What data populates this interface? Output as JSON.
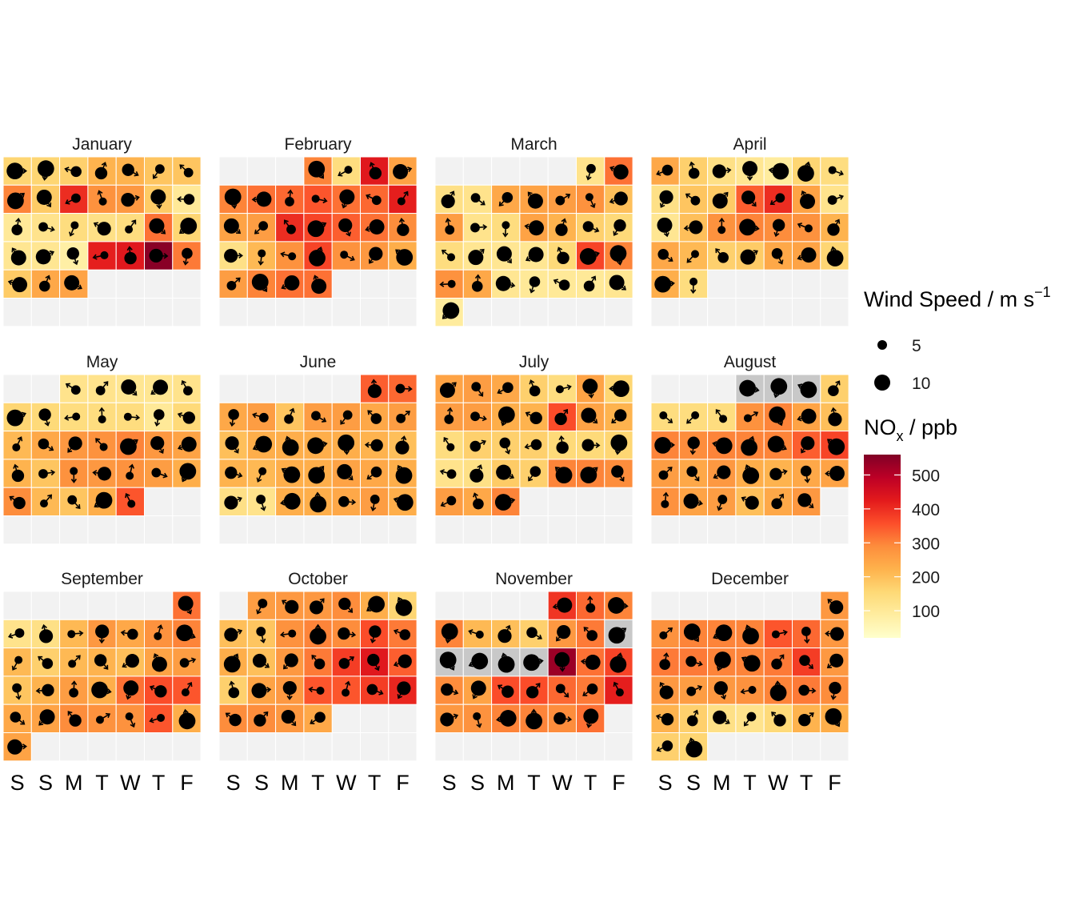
{
  "chart_data": {
    "type": "heatmap",
    "subtype": "calendar",
    "months": [
      {
        "name": "January",
        "start": 0,
        "nox": [
          160,
          160,
          170,
          220,
          220,
          190,
          190,
          300,
          180,
          400,
          280,
          270,
          180,
          100,
          100,
          120,
          140,
          130,
          140,
          320,
          160,
          110,
          110,
          80,
          420,
          430,
          550,
          310,
          180,
          240,
          250
        ]
      },
      {
        "name": "February",
        "start": 3,
        "nox": [
          300,
          140,
          430,
          250,
          300,
          320,
          330,
          350,
          320,
          330,
          420,
          250,
          260,
          400,
          370,
          340,
          320,
          290,
          130,
          210,
          280,
          370,
          280,
          270,
          230,
          260,
          300,
          320,
          320
        ]
      },
      {
        "name": "March",
        "start": 5,
        "nox": [
          120,
          320,
          130,
          120,
          240,
          250,
          260,
          280,
          200,
          260,
          120,
          140,
          250,
          220,
          170,
          150,
          140,
          110,
          110,
          110,
          150,
          370,
          300,
          280,
          240,
          110,
          100,
          100,
          100,
          110,
          90
        ]
      },
      {
        "name": "April",
        "start": 0,
        "nox": [
          240,
          170,
          130,
          110,
          90,
          160,
          140,
          130,
          190,
          180,
          340,
          400,
          250,
          120,
          110,
          200,
          280,
          300,
          290,
          280,
          220,
          240,
          210,
          170,
          180,
          240,
          250,
          160,
          230,
          140
        ]
      },
      {
        "name": "May",
        "start": 2,
        "nox": [
          120,
          120,
          110,
          110,
          120,
          160,
          150,
          140,
          140,
          140,
          100,
          150,
          210,
          240,
          270,
          280,
          300,
          270,
          250,
          220,
          190,
          280,
          270,
          280,
          260,
          230,
          290,
          210,
          190,
          230,
          350
        ]
      },
      {
        "name": "June",
        "start": 5,
        "nox": [
          340,
          330,
          240,
          260,
          190,
          260,
          260,
          240,
          260,
          200,
          230,
          230,
          230,
          230,
          220,
          200,
          220,
          210,
          230,
          230,
          250,
          240,
          230,
          130,
          120,
          230,
          230,
          240,
          260,
          230
        ]
      },
      {
        "name": "July",
        "start": 0,
        "nox": [
          250,
          260,
          240,
          170,
          140,
          250,
          160,
          260,
          260,
          230,
          220,
          360,
          250,
          220,
          140,
          170,
          170,
          170,
          150,
          150,
          160,
          120,
          130,
          180,
          170,
          300,
          300,
          290,
          260,
          240,
          300
        ]
      },
      {
        "name": "August",
        "start": 3,
        "nox": [
          -1,
          -1,
          -1,
          170,
          140,
          140,
          140,
          280,
          300,
          250,
          200,
          300,
          290,
          300,
          300,
          300,
          340,
          370,
          260,
          240,
          270,
          230,
          220,
          240,
          250,
          280,
          250,
          260,
          200,
          240,
          270
        ]
      },
      {
        "name": "September",
        "start": 6,
        "nox": [
          320,
          120,
          130,
          210,
          270,
          240,
          280,
          300,
          210,
          170,
          210,
          220,
          200,
          250,
          260,
          190,
          220,
          260,
          230,
          320,
          360,
          350,
          240,
          250,
          290,
          280,
          280,
          350,
          230,
          250
        ]
      },
      {
        "name": "October",
        "start": 1,
        "nox": [
          260,
          270,
          270,
          290,
          230,
          160,
          200,
          190,
          280,
          300,
          290,
          360,
          310,
          230,
          200,
          270,
          310,
          380,
          430,
          340,
          170,
          250,
          270,
          350,
          350,
          380,
          410,
          290,
          290,
          270,
          240
        ]
      },
      {
        "name": "November",
        "start": 4,
        "nox": [
          390,
          330,
          300,
          300,
          210,
          200,
          170,
          270,
          310,
          -1,
          -1,
          -1,
          -1,
          -1,
          530,
          320,
          370,
          290,
          250,
          360,
          360,
          330,
          310,
          420,
          270,
          280,
          300,
          300,
          290,
          320
        ]
      },
      {
        "name": "December",
        "start": 6,
        "nox": [
          270,
          280,
          300,
          300,
          300,
          350,
          330,
          270,
          310,
          310,
          300,
          300,
          310,
          380,
          270,
          270,
          260,
          270,
          280,
          300,
          310,
          290,
          220,
          170,
          130,
          120,
          150,
          220,
          230,
          170,
          160
        ]
      }
    ],
    "weekday_labels": [
      "S",
      "S",
      "M",
      "T",
      "W",
      "T",
      "F"
    ],
    "legend": {
      "wind_title": "Wind Speed / m s",
      "wind_sup": "−1",
      "wind_entries": [
        {
          "label": "5",
          "value": 5
        },
        {
          "label": "10",
          "value": 10
        }
      ],
      "nox_title": "NO",
      "nox_sub": "x",
      "nox_title_rest": " / ppb",
      "nox_ticks": [
        "100",
        "200",
        "300",
        "400",
        "500"
      ],
      "nox_tick_values": [
        100,
        200,
        300,
        400,
        500
      ],
      "nox_range": [
        20,
        560
      ]
    },
    "colors": {
      "scale": [
        "#FFFFCC",
        "#FFEDA0",
        "#FED976",
        "#FEB24C",
        "#FD8D3C",
        "#FC4E2A",
        "#E31A1C",
        "#BD0026",
        "#800026"
      ],
      "missing": "#C8C8C8",
      "empty": "#F2F2F2"
    }
  }
}
